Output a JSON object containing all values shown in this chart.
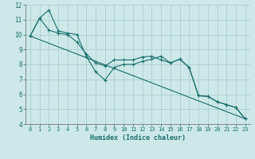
{
  "xlabel": "Humidex (Indice chaleur)",
  "ylabel": "",
  "xlim": [
    -0.5,
    23.5
  ],
  "ylim": [
    4,
    12
  ],
  "yticks": [
    4,
    5,
    6,
    7,
    8,
    9,
    10,
    11,
    12
  ],
  "xticks": [
    0,
    1,
    2,
    3,
    4,
    5,
    6,
    7,
    8,
    9,
    10,
    11,
    12,
    13,
    14,
    15,
    16,
    17,
    18,
    19,
    20,
    21,
    22,
    23
  ],
  "background_color": "#cce8e8",
  "grid_color": "#aacece",
  "line_color": "#1a6e6e",
  "line1_x": [
    0,
    1,
    2,
    3,
    4,
    5,
    6,
    7,
    8,
    9,
    10,
    11,
    12,
    13,
    14,
    15,
    16,
    17,
    18,
    19,
    20,
    21,
    22,
    23
  ],
  "line1_y": [
    9.9,
    11.1,
    11.65,
    10.25,
    10.1,
    10.0,
    8.55,
    7.5,
    6.95,
    7.8,
    8.0,
    8.0,
    8.2,
    8.35,
    8.55,
    8.1,
    8.35,
    7.8,
    5.9,
    5.85,
    5.5,
    5.3,
    5.1,
    4.35
  ],
  "line2_x": [
    0,
    1,
    2,
    3,
    4,
    5,
    6,
    7,
    8,
    9,
    10,
    11,
    12,
    13,
    14,
    15,
    16,
    17,
    18,
    19,
    20,
    21,
    22,
    23
  ],
  "line2_y": [
    9.9,
    11.1,
    10.3,
    10.1,
    10.0,
    9.5,
    8.7,
    8.1,
    7.9,
    8.3,
    8.3,
    8.3,
    8.5,
    8.55,
    8.3,
    8.1,
    8.35,
    7.8,
    5.9,
    5.85,
    5.5,
    5.3,
    5.1,
    4.35
  ],
  "line3_x": [
    0,
    23
  ],
  "line3_y": [
    9.9,
    4.35
  ]
}
